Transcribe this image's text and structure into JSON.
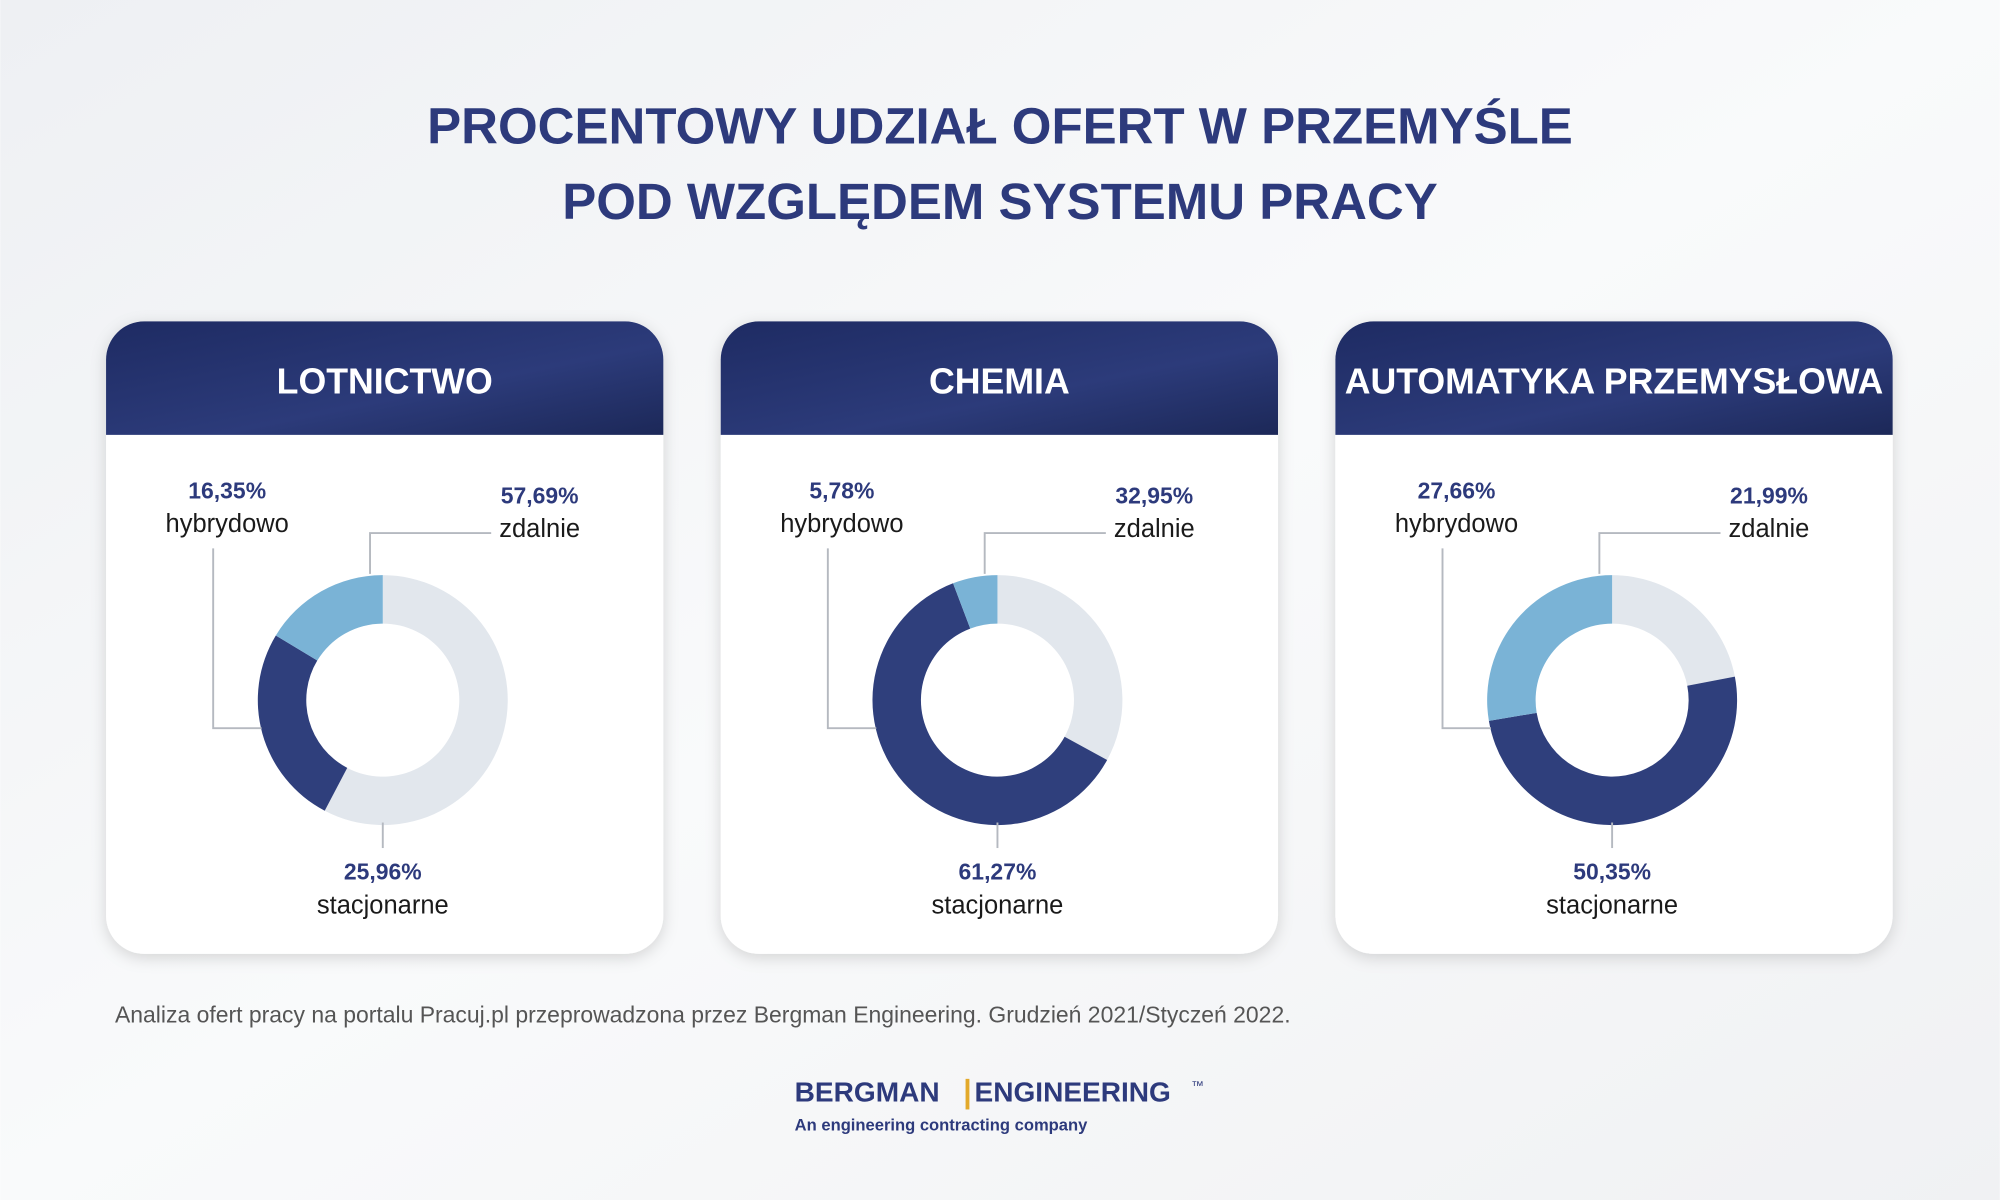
{
  "header": {
    "title_lines": [
      "PROCENTOWY UDZIAŁ OFERT W PRZEMYŚLE",
      "POD WZGLĘDEM SYSTEMU PRACY"
    ]
  },
  "chart_data": [
    {
      "type": "donut",
      "title": "LOTNICTWO",
      "categories": [
        "zdalnie",
        "stacjonarne",
        "hybrydowo"
      ],
      "values": [
        57.69,
        25.96,
        16.35
      ],
      "value_labels": [
        "57,69%",
        "25,96%",
        "16,35%"
      ],
      "colors": [
        "#e2e7ed",
        "#2f3f7c",
        "#7ab3d6"
      ]
    },
    {
      "type": "donut",
      "title": "CHEMIA",
      "categories": [
        "zdalnie",
        "stacjonarne",
        "hybrydowo"
      ],
      "values": [
        32.95,
        61.27,
        5.78
      ],
      "value_labels": [
        "32,95%",
        "61,27%",
        "5,78%"
      ],
      "colors": [
        "#e2e7ed",
        "#2f3f7c",
        "#7ab3d6"
      ]
    },
    {
      "type": "donut",
      "title": "AUTOMATYKA PRZEMYSŁOWA",
      "categories": [
        "zdalnie",
        "stacjonarne",
        "hybrydowo"
      ],
      "values": [
        21.99,
        50.35,
        27.66
      ],
      "value_labels": [
        "21,99%",
        "50,35%",
        "27,66%"
      ],
      "colors": [
        "#e2e7ed",
        "#2f3f7c",
        "#7ab3d6"
      ]
    }
  ],
  "footnote": "Analiza ofert pracy na portalu Pracuj.pl przeprowadzona przez Bergman Engineering. Grudzień 2021/Styczeń 2022.",
  "logo": {
    "left": "BERGMAN",
    "right": "ENGINEERING",
    "mark": "™",
    "tagline": "An engineering contracting company"
  }
}
